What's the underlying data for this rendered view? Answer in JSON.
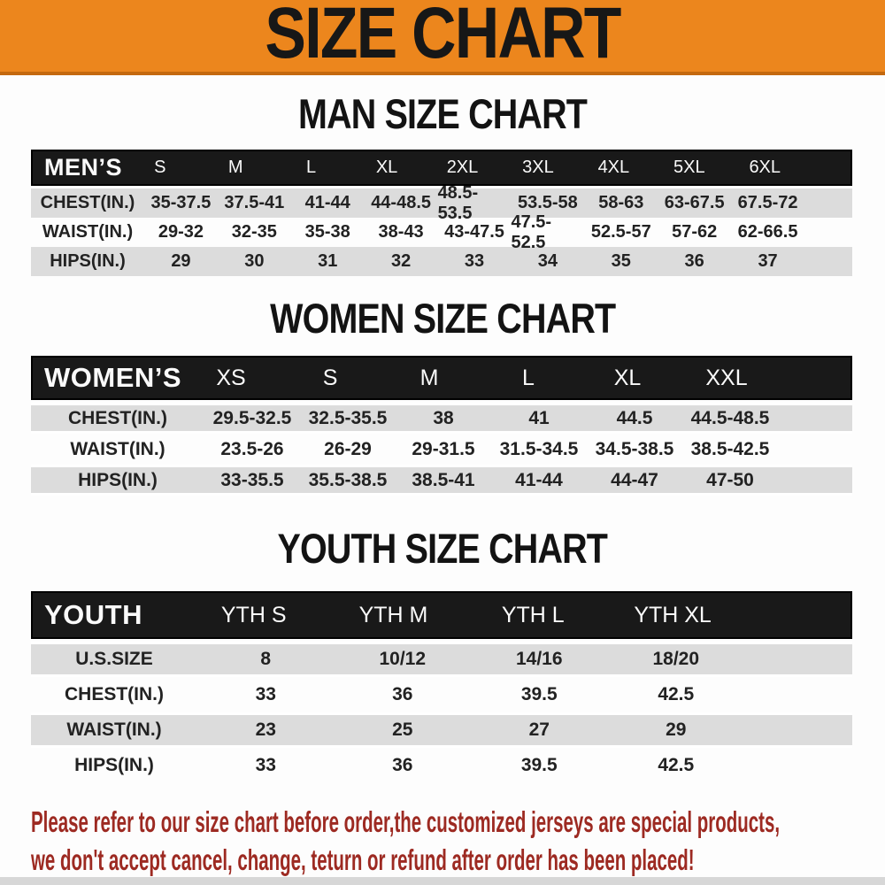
{
  "banner": {
    "title": "SIZE CHART"
  },
  "colors": {
    "banner_bg": "#ec861d",
    "banner_border": "#c4690f",
    "table_header_bg": "#191919",
    "row_shaded": "#dcdcdc",
    "footer_text": "#9d2a22"
  },
  "sections": [
    {
      "heading": "MAN SIZE CHART",
      "group_label": "MEN’S",
      "columns": [
        "S",
        "M",
        "L",
        "XL",
        "2XL",
        "3XL",
        "4XL",
        "5XL",
        "6XL"
      ],
      "rows": [
        {
          "label": "CHEST(IN.)",
          "values": [
            "35-37.5",
            "37.5-41",
            "41-44",
            "44-48.5",
            "48.5-53.5",
            "53.5-58",
            "58-63",
            "63-67.5",
            "67.5-72"
          ]
        },
        {
          "label": "WAIST(IN.)",
          "values": [
            "29-32",
            "32-35",
            "35-38",
            "38-43",
            "43-47.5",
            "47.5-52.5",
            "52.5-57",
            "57-62",
            "62-66.5"
          ]
        },
        {
          "label": "HIPS(IN.)",
          "values": [
            "29",
            "30",
            "31",
            "32",
            "33",
            "34",
            "35",
            "36",
            "37"
          ]
        }
      ]
    },
    {
      "heading": "WOMEN SIZE CHART",
      "group_label": "WOMEN’S",
      "columns": [
        "XS",
        "S",
        "M",
        "L",
        "XL",
        "XXL"
      ],
      "rows": [
        {
          "label": "CHEST(IN.)",
          "values": [
            "29.5-32.5",
            "32.5-35.5",
            "38",
            "41",
            "44.5",
            "44.5-48.5"
          ]
        },
        {
          "label": "WAIST(IN.)",
          "values": [
            "23.5-26",
            "26-29",
            "29-31.5",
            "31.5-34.5",
            "34.5-38.5",
            "38.5-42.5"
          ]
        },
        {
          "label": "HIPS(IN.)",
          "values": [
            "33-35.5",
            "35.5-38.5",
            "38.5-41",
            "41-44",
            "44-47",
            "47-50"
          ]
        }
      ]
    },
    {
      "heading": "YOUTH SIZE CHART",
      "group_label": "YOUTH",
      "columns": [
        "YTH S",
        "YTH M",
        "YTH L",
        "YTH XL"
      ],
      "rows": [
        {
          "label": "U.S.SIZE",
          "values": [
            "8",
            "10/12",
            "14/16",
            "18/20"
          ]
        },
        {
          "label": "CHEST(IN.)",
          "values": [
            "33",
            "36",
            "39.5",
            "42.5"
          ]
        },
        {
          "label": "WAIST(IN.)",
          "values": [
            "23",
            "25",
            "27",
            "29"
          ]
        },
        {
          "label": "HIPS(IN.)",
          "values": [
            "33",
            "36",
            "39.5",
            "42.5"
          ]
        }
      ]
    }
  ],
  "footer": {
    "lines": [
      "Please refer to our size chart before order,the customized jerseys are special products,",
      "we don't accept cancel, change, teturn or refund after order has been placed!"
    ]
  }
}
